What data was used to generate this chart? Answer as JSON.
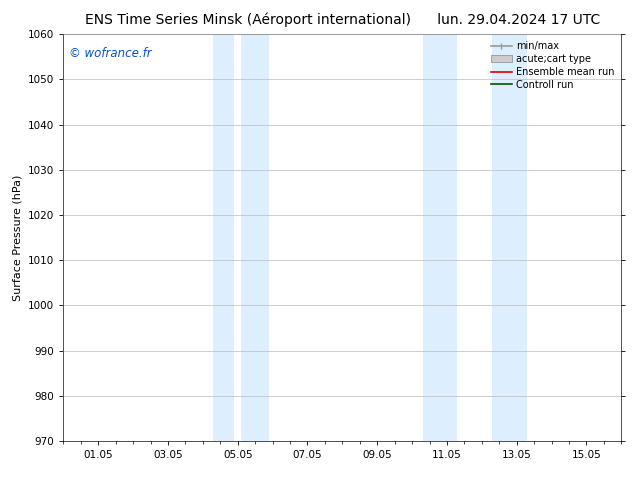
{
  "title_left": "ENS Time Series Minsk (Aéroport international)",
  "title_right": "lun. 29.04.2024 17 UTC",
  "ylabel": "Surface Pressure (hPa)",
  "watermark": "© wofrance.fr",
  "watermark_color": "#0055cc",
  "ylim": [
    970,
    1060
  ],
  "yticks": [
    970,
    980,
    990,
    1000,
    1010,
    1020,
    1030,
    1040,
    1050,
    1060
  ],
  "xtick_labels": [
    "01.05",
    "03.05",
    "05.05",
    "07.05",
    "09.05",
    "11.05",
    "13.05",
    "15.05"
  ],
  "xtick_positions": [
    1,
    3,
    5,
    7,
    9,
    11,
    13,
    15
  ],
  "xlim": [
    0,
    16
  ],
  "shaded_bands": [
    {
      "xmin": 4.3,
      "xmax": 4.9
    },
    {
      "xmin": 5.1,
      "xmax": 5.9
    },
    {
      "xmin": 10.3,
      "xmax": 11.3
    },
    {
      "xmin": 12.3,
      "xmax": 13.3
    }
  ],
  "shade_color": "#ddeeff",
  "background_color": "#ffffff",
  "grid_color": "#bbbbbb",
  "title_fontsize": 10,
  "tick_fontsize": 7.5,
  "ylabel_fontsize": 8,
  "watermark_fontsize": 8.5,
  "legend_fontsize": 7
}
